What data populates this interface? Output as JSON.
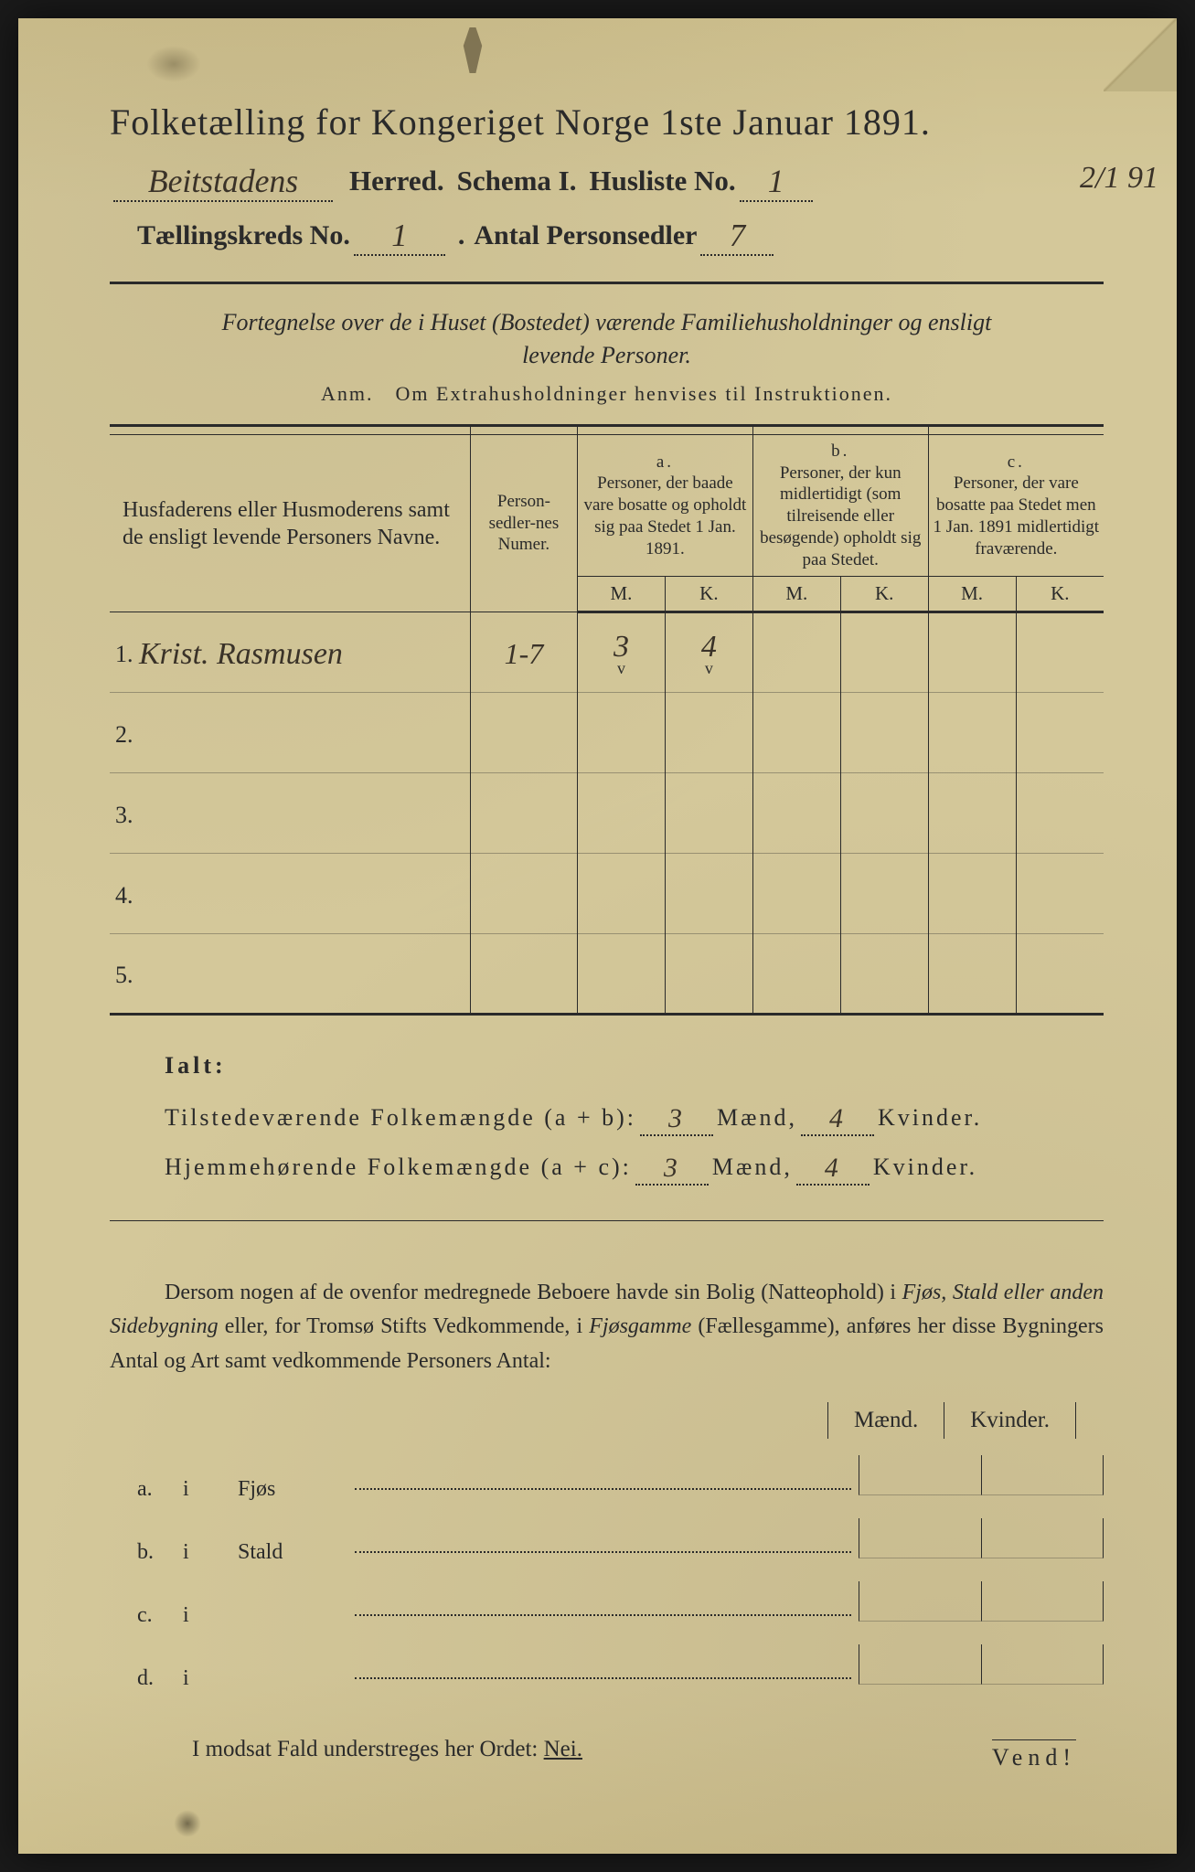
{
  "colors": {
    "paper": "#d4c89a",
    "ink": "#2a2a2a",
    "handwriting": "#3a3228",
    "frame": "#1a1a1a"
  },
  "header": {
    "title": "Folketælling for Kongeriget Norge 1ste Januar 1891.",
    "herred_handwritten": "Beitstadens",
    "herred_label": "Herred.",
    "schema_label": "Schema I.",
    "husliste_label": "Husliste No.",
    "husliste_no": "1",
    "date_annotation": "2/1 91",
    "taellingskreds_label": "Tællingskreds No.",
    "taellingskreds_no": "1",
    "antal_label": "Antal Personsedler",
    "antal_value": "7"
  },
  "subtitle": {
    "line1": "Fortegnelse over de i Huset (Bostedet) værende Familiehusholdninger og ensligt",
    "line2": "levende Personer.",
    "anm": "Anm. Om Extrahusholdninger henvises til Instruktionen."
  },
  "table": {
    "col_names": "Husfaderens eller Husmoderens samt de ensligt levende Personers Navne.",
    "col_numer": "Person-sedler-nes Numer.",
    "group_a": "a.",
    "group_a_text": "Personer, der baade vare bosatte og opholdt sig paa Stedet 1 Jan. 1891.",
    "group_b": "b.",
    "group_b_text": "Personer, der kun midlertidigt (som tilreisende eller besøgende) opholdt sig paa Stedet.",
    "group_c": "c.",
    "group_c_text": "Personer, der vare bosatte paa Stedet men 1 Jan. 1891 midlertidigt fraværende.",
    "M": "M.",
    "K": "K.",
    "rows": [
      {
        "n": "1.",
        "name": "Krist. Rasmusen",
        "numer": "1-7",
        "aM": "3",
        "aK": "4",
        "bM": "",
        "bK": "",
        "cM": "",
        "cK": ""
      },
      {
        "n": "2.",
        "name": "",
        "numer": "",
        "aM": "",
        "aK": "",
        "bM": "",
        "bK": "",
        "cM": "",
        "cK": ""
      },
      {
        "n": "3.",
        "name": "",
        "numer": "",
        "aM": "",
        "aK": "",
        "bM": "",
        "bK": "",
        "cM": "",
        "cK": ""
      },
      {
        "n": "4.",
        "name": "",
        "numer": "",
        "aM": "",
        "aK": "",
        "bM": "",
        "bK": "",
        "cM": "",
        "cK": ""
      },
      {
        "n": "5.",
        "name": "",
        "numer": "",
        "aM": "",
        "aK": "",
        "bM": "",
        "bK": "",
        "cM": "",
        "cK": ""
      }
    ]
  },
  "totals": {
    "heading": "Ialt:",
    "line1_label": "Tilstedeværende Folkemængde (a + b):",
    "line1_m": "3",
    "line1_k": "4",
    "line2_label": "Hjemmehørende Folkemængde (a + c):",
    "line2_m": "3",
    "line2_k": "4",
    "maend": "Mænd,",
    "kvinder": "Kvinder."
  },
  "paragraph": "Dersom nogen af de ovenfor medregnede Beboere havde sin Bolig (Natteophold) i Fjøs, Stald eller anden Sidebygning eller, for Tromsø Stifts Vedkommende, i Fjøsgamme (Fællesgamme), anføres her disse Bygningers Antal og Art samt vedkommende Personers Antal:",
  "mk_header": {
    "m": "Mænd.",
    "k": "Kvinder."
  },
  "bottom_rows": [
    {
      "letter": "a.",
      "i": "i",
      "word": "Fjøs"
    },
    {
      "letter": "b.",
      "i": "i",
      "word": "Stald"
    },
    {
      "letter": "c.",
      "i": "i",
      "word": ""
    },
    {
      "letter": "d.",
      "i": "i",
      "word": ""
    }
  ],
  "closing": {
    "text": "I modsat Fald understreges her Ordet:",
    "nei": "Nei."
  },
  "vend": "Vend!"
}
